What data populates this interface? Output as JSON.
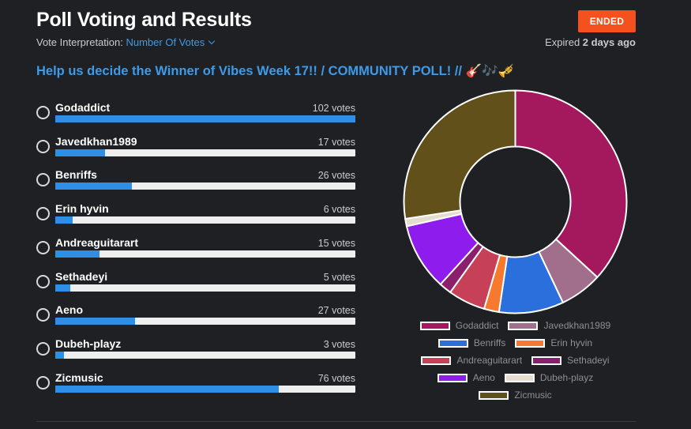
{
  "header": {
    "title": "Poll Voting and Results",
    "interpretation_label": "Vote Interpretation:",
    "interpretation_value": "Number Of Votes",
    "status": "ENDED",
    "expired_prefix": "Expired",
    "expired_value": "2 days ago"
  },
  "question": "Help us decide the Winner of Vibes Week 17!! / COMMUNITY POLL! // 🎸🎶🎺",
  "options": [
    {
      "name": "Godaddict",
      "votes_label": "102 votes",
      "votes": 102,
      "color": "#a4195e"
    },
    {
      "name": "Javedkhan1989",
      "votes_label": "17 votes",
      "votes": 17,
      "color": "#a16e8b"
    },
    {
      "name": "Benriffs",
      "votes_label": "26 votes",
      "votes": 26,
      "color": "#2a6fdc"
    },
    {
      "name": "Erin hyvin",
      "votes_label": "6 votes",
      "votes": 6,
      "color": "#f6792d"
    },
    {
      "name": "Andreaguitarart",
      "votes_label": "15 votes",
      "votes": 15,
      "color": "#c64058"
    },
    {
      "name": "Sethadeyi",
      "votes_label": "5 votes",
      "votes": 5,
      "color": "#8b1f6b"
    },
    {
      "name": "Aeno",
      "votes_label": "27 votes",
      "votes": 27,
      "color": "#8e1cec"
    },
    {
      "name": "Dubeh-playz",
      "votes_label": "3 votes",
      "votes": 3,
      "color": "#e5decf"
    },
    {
      "name": "Zicmusic",
      "votes_label": "76 votes",
      "votes": 76,
      "color": "#62501a"
    }
  ],
  "max_votes": 102,
  "chart_data": {
    "type": "pie",
    "categories": [
      "Godaddict",
      "Javedkhan1989",
      "Benriffs",
      "Erin hyvin",
      "Andreaguitarart",
      "Sethadeyi",
      "Aeno",
      "Dubeh-playz",
      "Zicmusic"
    ],
    "values": [
      102,
      17,
      26,
      6,
      15,
      5,
      27,
      3,
      76
    ],
    "donut": true,
    "legend_position": "bottom"
  }
}
